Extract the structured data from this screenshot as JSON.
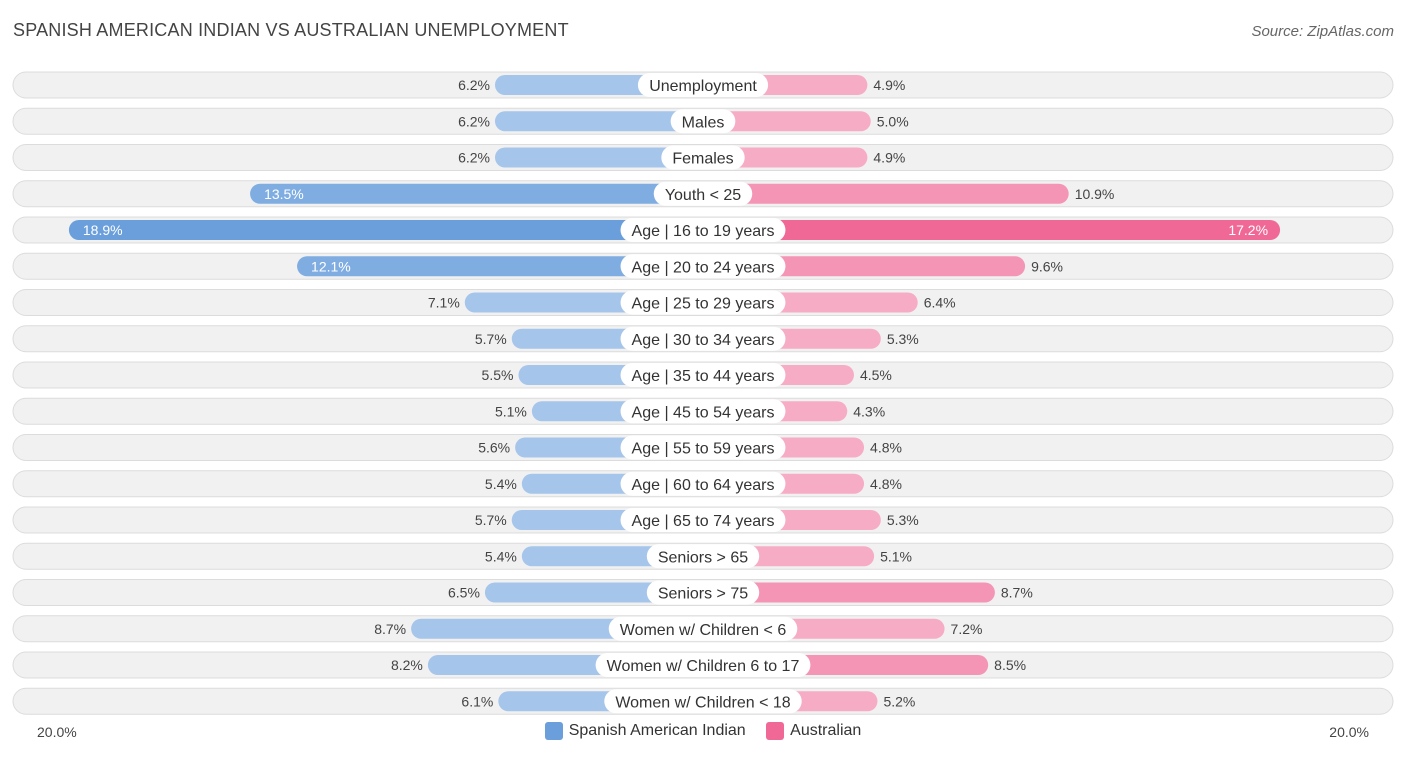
{
  "header": {
    "title": "SPANISH AMERICAN INDIAN VS AUSTRALIAN UNEMPLOYMENT",
    "source": "Source: ZipAtlas.com"
  },
  "axis": {
    "left_label": "20.0%",
    "right_label": "20.0%"
  },
  "legend": {
    "left": {
      "label": "Spanish American Indian",
      "color": "#6a9fdc"
    },
    "right": {
      "label": "Australian",
      "color": "#f06896"
    }
  },
  "chart_data": {
    "type": "bar",
    "orientation": "horizontal-diverging",
    "title": "SPANISH AMERICAN INDIAN VS AUSTRALIAN UNEMPLOYMENT",
    "xlim": [
      -20,
      20
    ],
    "unit": "%",
    "categories": [
      "Unemployment",
      "Males",
      "Females",
      "Youth < 25",
      "Age | 16 to 19 years",
      "Age | 20 to 24 years",
      "Age | 25 to 29 years",
      "Age | 30 to 34 years",
      "Age | 35 to 44 years",
      "Age | 45 to 54 years",
      "Age | 55 to 59 years",
      "Age | 60 to 64 years",
      "Age | 65 to 74 years",
      "Seniors > 65",
      "Seniors > 75",
      "Women w/ Children < 6",
      "Women w/ Children 6 to 17",
      "Women w/ Children < 18"
    ],
    "series": [
      {
        "name": "Spanish American Indian",
        "color": "#6a9fdc",
        "values": [
          6.2,
          6.2,
          6.2,
          13.5,
          18.9,
          12.1,
          7.1,
          5.7,
          5.5,
          5.1,
          5.6,
          5.4,
          5.7,
          5.4,
          6.5,
          8.7,
          8.2,
          6.1
        ],
        "labels": [
          "6.2%",
          "6.2%",
          "6.2%",
          "13.5%",
          "18.9%",
          "12.1%",
          "7.1%",
          "5.7%",
          "5.5%",
          "5.1%",
          "5.6%",
          "5.4%",
          "5.7%",
          "5.4%",
          "6.5%",
          "8.7%",
          "8.2%",
          "6.1%"
        ]
      },
      {
        "name": "Australian",
        "color": "#f06896",
        "values": [
          4.9,
          5.0,
          4.9,
          10.9,
          17.2,
          9.6,
          6.4,
          5.3,
          4.5,
          4.3,
          4.8,
          4.8,
          5.3,
          5.1,
          8.7,
          7.2,
          8.5,
          5.2
        ],
        "labels": [
          "4.9%",
          "5.0%",
          "4.9%",
          "10.9%",
          "17.2%",
          "9.6%",
          "6.4%",
          "5.3%",
          "4.5%",
          "4.3%",
          "4.8%",
          "4.8%",
          "5.3%",
          "5.1%",
          "8.7%",
          "7.2%",
          "8.5%",
          "5.2%"
        ]
      }
    ]
  }
}
